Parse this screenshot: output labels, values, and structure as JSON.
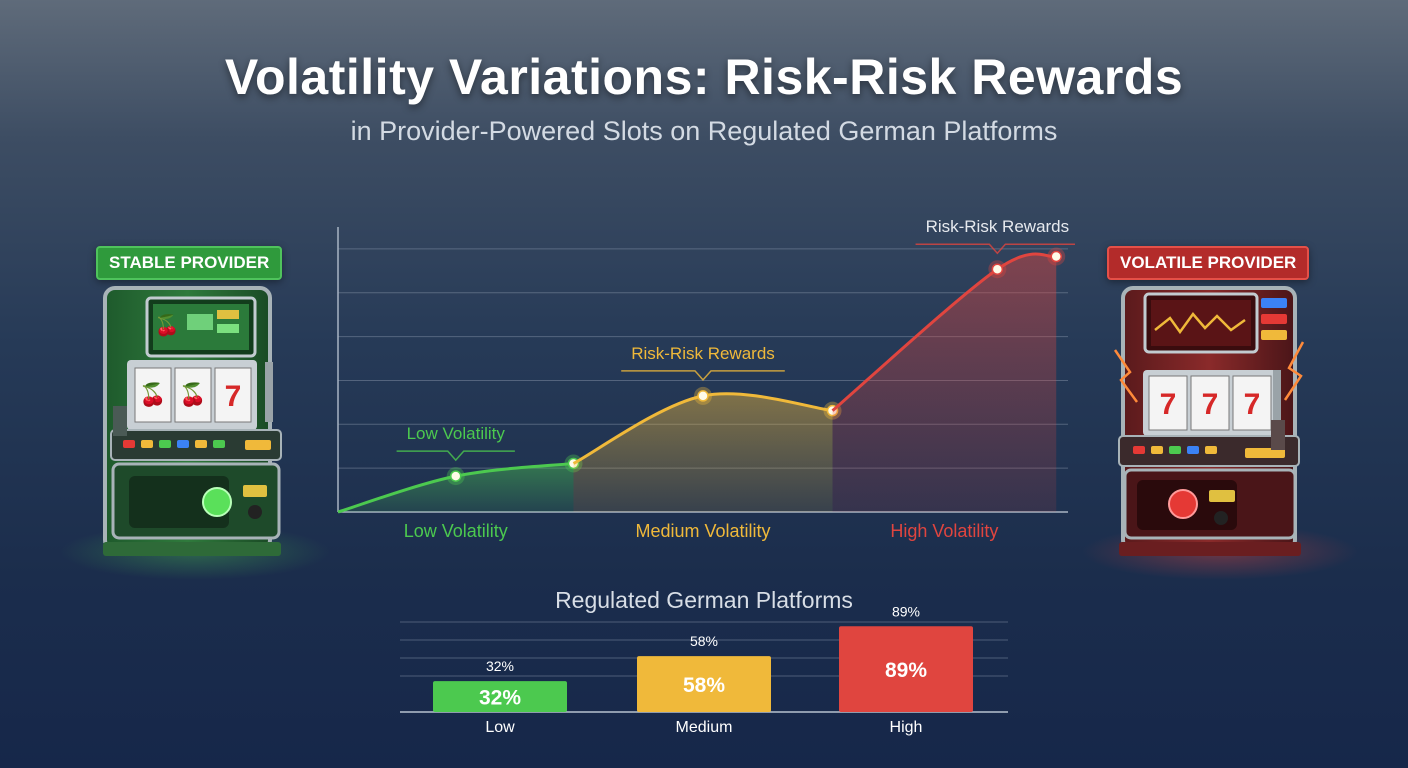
{
  "title": "Volatility Variations: Risk-Risk Rewards",
  "subtitle": "in Provider-Powered Slots on Regulated German Platforms",
  "badges": {
    "stable": "STABLE PROVIDER",
    "volatile": "VOLATILE PROVIDER"
  },
  "slot_machines": {
    "left": {
      "reel_symbols": [
        "🍒",
        "🍒",
        "7"
      ],
      "screen_symbol": "🍒"
    },
    "right": {
      "reel_symbols": [
        "7",
        "7",
        "7"
      ]
    }
  },
  "colors": {
    "low": "#4cc94f",
    "medium": "#f0b93a",
    "high": "#e0453f",
    "stable_badge": "#2f9a3c",
    "volatile_badge": "#b32b2a"
  },
  "chart_data": [
    {
      "type": "area",
      "categories": [
        "Low Volatility",
        "Medium Volatility",
        "High Volatility"
      ],
      "series": [
        {
          "segment": "Low Volatility",
          "points": [
            [
              0,
              0
            ],
            [
              0.5,
              0.17
            ],
            [
              1,
              0.23
            ]
          ]
        },
        {
          "segment": "Medium Volatility",
          "points": [
            [
              1,
              0.23
            ],
            [
              1.55,
              0.55
            ],
            [
              2.1,
              0.48
            ]
          ]
        },
        {
          "segment": "High Volatility",
          "points": [
            [
              2.1,
              0.48
            ],
            [
              2.8,
              1.15
            ],
            [
              3.05,
              1.21
            ]
          ]
        }
      ],
      "annotations": [
        {
          "text": "Low Volatility",
          "at": [
            0.5,
            0.17
          ]
        },
        {
          "text": "Risk-Risk Rewards",
          "at": [
            1.55,
            0.55
          ]
        },
        {
          "text": "Risk-Risk Rewards",
          "at": [
            2.8,
            1.15
          ]
        }
      ],
      "xlim": [
        0,
        3.1
      ],
      "ylim": [
        0,
        1.35
      ],
      "grid": true,
      "xlabel": "",
      "ylabel": ""
    },
    {
      "type": "bar",
      "title": "Regulated German Platforms",
      "categories": [
        "Low",
        "Medium",
        "High"
      ],
      "values": [
        32,
        58,
        89
      ],
      "value_labels": [
        "32%",
        "58%",
        "89%"
      ],
      "ylim": [
        0,
        100
      ],
      "grid": true
    }
  ]
}
